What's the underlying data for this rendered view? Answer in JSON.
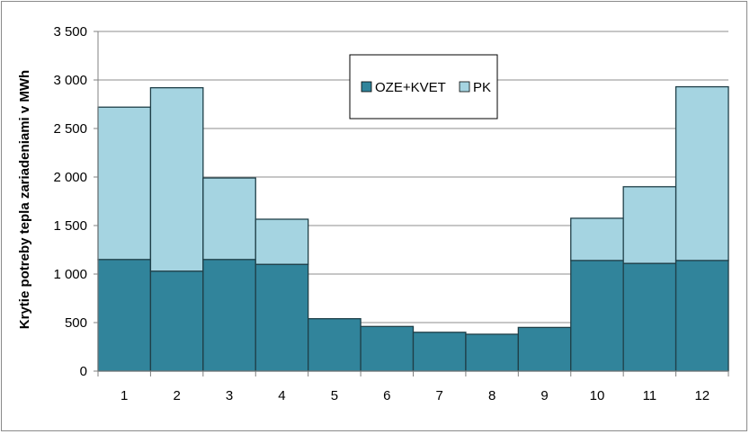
{
  "chart_data": {
    "type": "bar",
    "stacked": true,
    "title": "",
    "xlabel": "",
    "ylabel": "Krytie potreby tepla zariadeniami  v MWh",
    "ylim": [
      0,
      3500
    ],
    "y_ticks": [
      0,
      500,
      1000,
      1500,
      2000,
      2500,
      3000,
      3500
    ],
    "y_tick_labels": [
      "0",
      "500",
      "1 000",
      "1 500",
      "2 000",
      "2 500",
      "3 000",
      "3 500"
    ],
    "grid": true,
    "legend_position": "top-center",
    "categories": [
      "1",
      "2",
      "3",
      "4",
      "5",
      "6",
      "7",
      "8",
      "9",
      "10",
      "11",
      "12"
    ],
    "series": [
      {
        "name": "OZE+KVET",
        "color": "#31849B",
        "values": [
          1150,
          1030,
          1150,
          1100,
          540,
          460,
          400,
          380,
          450,
          1140,
          1110,
          1140
        ]
      },
      {
        "name": "PK",
        "color": "#A5D4E1",
        "values": [
          1570,
          1890,
          840,
          465,
          0,
          0,
          0,
          0,
          0,
          435,
          790,
          1790
        ]
      }
    ]
  }
}
